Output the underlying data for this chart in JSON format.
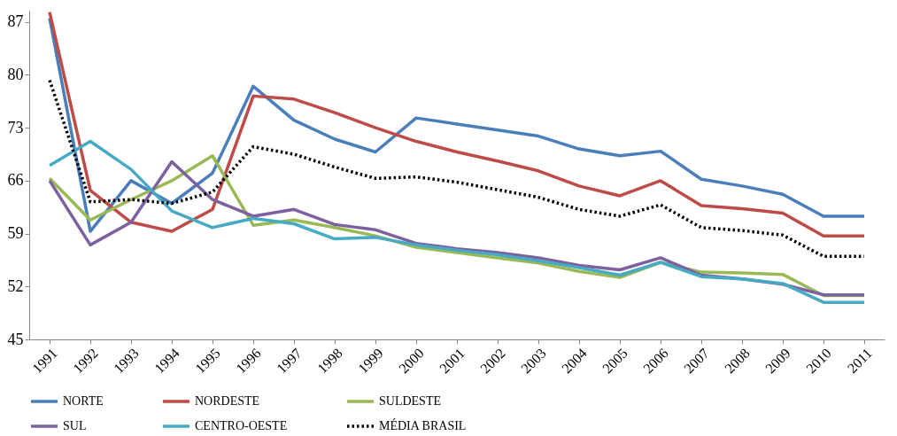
{
  "chart_data": {
    "type": "line",
    "categories": [
      "1991",
      "1992",
      "1993",
      "1994",
      "1995",
      "1996",
      "1997",
      "1998",
      "1999",
      "2000",
      "2001",
      "2002",
      "2003",
      "2004",
      "2005",
      "2006",
      "2007",
      "2008",
      "2009",
      "2010",
      "2011"
    ],
    "series": [
      {
        "name": "NORTE",
        "color": "#4a7ebb",
        "values": [
          87.5,
          59.3,
          66,
          63,
          67,
          78.5,
          74,
          71.5,
          69.8,
          74.3,
          73.5,
          72.7,
          71.9,
          70.2,
          69.3,
          69.9,
          66.2,
          65.3,
          64.2,
          61.3,
          61.3
        ]
      },
      {
        "name": "NORDESTE",
        "color": "#be4b48",
        "values": [
          88.3,
          64.7,
          60.5,
          59.3,
          62.2,
          77.2,
          76.8,
          75,
          73,
          71.2,
          69.8,
          68.6,
          67.3,
          65.3,
          64,
          66,
          62.7,
          62.3,
          61.7,
          58.7,
          58.7
        ]
      },
      {
        "name": "SULDESTE",
        "color": "#98b954",
        "values": [
          66.3,
          60.8,
          63.5,
          66,
          69.3,
          60.1,
          60.8,
          59.8,
          58.7,
          57.2,
          56.5,
          55.8,
          55.1,
          54,
          53.2,
          55.2,
          53.9,
          53.8,
          53.6,
          50.8,
          50.8
        ]
      },
      {
        "name": "SUL",
        "color": "#7d60a0",
        "values": [
          66,
          57.5,
          60.5,
          68.5,
          63.5,
          61.3,
          62.2,
          60.2,
          59.5,
          57.7,
          57,
          56.5,
          55.8,
          54.8,
          54.2,
          55.8,
          53.5,
          53,
          52.3,
          50.9,
          50.9
        ]
      },
      {
        "name": "CENTRO-OESTE",
        "color": "#46aac5",
        "values": [
          68,
          71.2,
          67.5,
          62,
          59.8,
          61,
          60.3,
          58.3,
          58.5,
          57.5,
          56.8,
          56.2,
          55.4,
          54.5,
          53.5,
          55.2,
          53.3,
          53,
          52.4,
          49.9,
          49.9
        ]
      },
      {
        "name": "MÉDIA BRASIL",
        "color": "#000000",
        "line_style": "dotted",
        "values": [
          79.3,
          63.2,
          63.5,
          63,
          64.5,
          70.5,
          69.5,
          67.8,
          66.3,
          66.5,
          65.8,
          64.8,
          63.8,
          62.2,
          61.3,
          62.8,
          59.8,
          59.4,
          58.8,
          56,
          56
        ]
      }
    ],
    "ylim": [
      45,
      88.5
    ],
    "yticks": [
      45,
      52,
      59,
      66,
      73,
      80,
      87
    ],
    "grid": false,
    "legend": "bottom",
    "line_style": "solid"
  }
}
